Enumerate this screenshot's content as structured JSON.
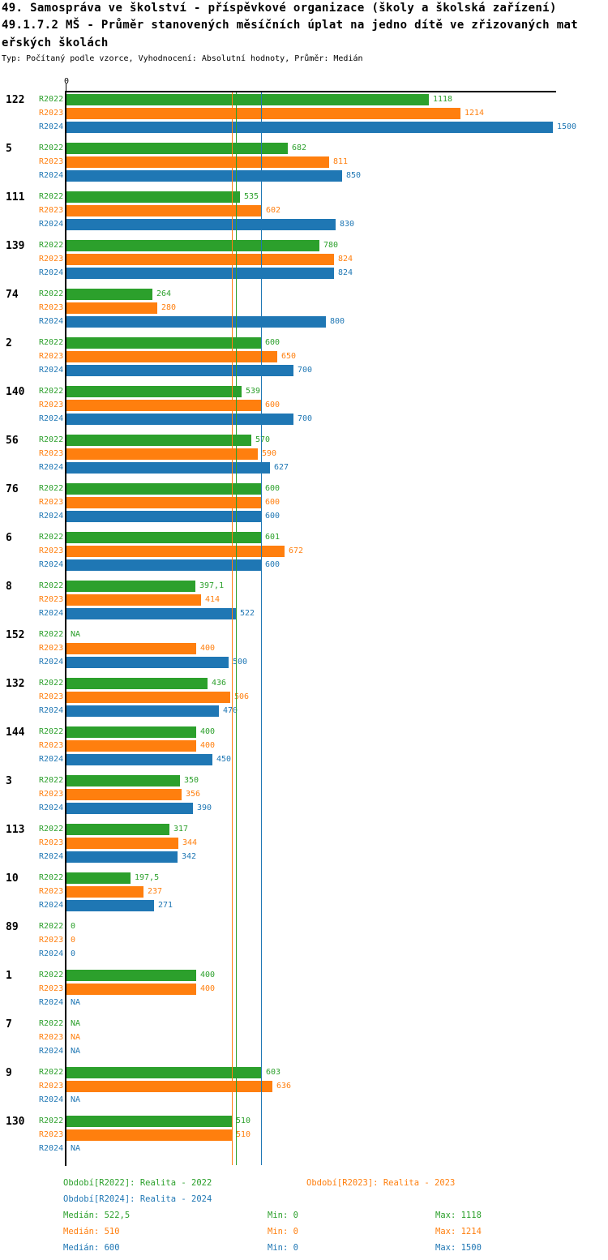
{
  "title": {
    "line1": "49. Samospráva ve školství - příspěvkové organizace (školy a školská zařízení)",
    "line2": "49.1.7.2 MŠ - Průměr stanovených měsíčních úplat na jedno dítě ve zřizovaných mat",
    "line3": "eřských školách",
    "subtitle": "Typ: Počítaný podle vzorce, Vyhodnocení: Absolutní hodnoty, Průměr: Medián"
  },
  "axis": {
    "zero_label": "0"
  },
  "colors": {
    "r2022": "#2ca02c",
    "r2023": "#ff7f0e",
    "r2024": "#1f77b4",
    "axis": "#000000"
  },
  "chart_data": {
    "type": "bar",
    "orientation": "horizontal",
    "title": "49.1.7.2 MŠ - Průměr stanovených měsíčních úplat na jedno dítě ve zřizovaných mateřských školách",
    "series_labels": [
      "R2022",
      "R2023",
      "R2024"
    ],
    "series_colors": [
      "#2ca02c",
      "#ff7f0e",
      "#1f77b4"
    ],
    "xlim": [
      0,
      1510
    ],
    "na_text": "NA",
    "groups": [
      {
        "label": "122",
        "values": [
          "1118",
          "1214",
          "1500"
        ]
      },
      {
        "label": "5",
        "values": [
          "682",
          "811",
          "850"
        ]
      },
      {
        "label": "111",
        "values": [
          "535",
          "602",
          "830"
        ]
      },
      {
        "label": "139",
        "values": [
          "780",
          "824",
          "824"
        ]
      },
      {
        "label": "74",
        "values": [
          "264",
          "280",
          "800"
        ]
      },
      {
        "label": "2",
        "values": [
          "600",
          "650",
          "700"
        ]
      },
      {
        "label": "140",
        "values": [
          "539",
          "600",
          "700"
        ]
      },
      {
        "label": "56",
        "values": [
          "570",
          "590",
          "627"
        ]
      },
      {
        "label": "76",
        "values": [
          "600",
          "600",
          "600"
        ]
      },
      {
        "label": "6",
        "values": [
          "601",
          "672",
          "600"
        ]
      },
      {
        "label": "8",
        "values": [
          "397,1",
          "414",
          "522"
        ]
      },
      {
        "label": "152",
        "values": [
          "NA",
          "400",
          "500"
        ]
      },
      {
        "label": "132",
        "values": [
          "436",
          "506",
          "470"
        ]
      },
      {
        "label": "144",
        "values": [
          "400",
          "400",
          "450"
        ]
      },
      {
        "label": "3",
        "values": [
          "350",
          "356",
          "390"
        ]
      },
      {
        "label": "113",
        "values": [
          "317",
          "344",
          "342"
        ]
      },
      {
        "label": "10",
        "values": [
          "197,5",
          "237",
          "271"
        ]
      },
      {
        "label": "89",
        "values": [
          "0",
          "0",
          "0"
        ]
      },
      {
        "label": "1",
        "values": [
          "400",
          "400",
          "NA"
        ]
      },
      {
        "label": "7",
        "values": [
          "NA",
          "NA",
          "NA"
        ]
      },
      {
        "label": "9",
        "values": [
          "603",
          "636",
          "NA"
        ]
      },
      {
        "label": "130",
        "values": [
          "510",
          "510",
          "NA"
        ]
      }
    ],
    "medians": [
      522.5,
      510,
      600
    ]
  },
  "legend": {
    "period_r2022": "Období[R2022]: Realita - 2022",
    "period_r2023": "Období[R2023]: Realita - 2023",
    "period_r2024": "Období[R2024]: Realita - 2024",
    "stats": [
      {
        "median": "Medián: 522,5",
        "min": "Min: 0",
        "max": "Max: 1118"
      },
      {
        "median": "Medián: 510",
        "min": "Min: 0",
        "max": "Max: 1214"
      },
      {
        "median": "Medián: 600",
        "min": "Min: 0",
        "max": "Max: 1500"
      }
    ]
  }
}
